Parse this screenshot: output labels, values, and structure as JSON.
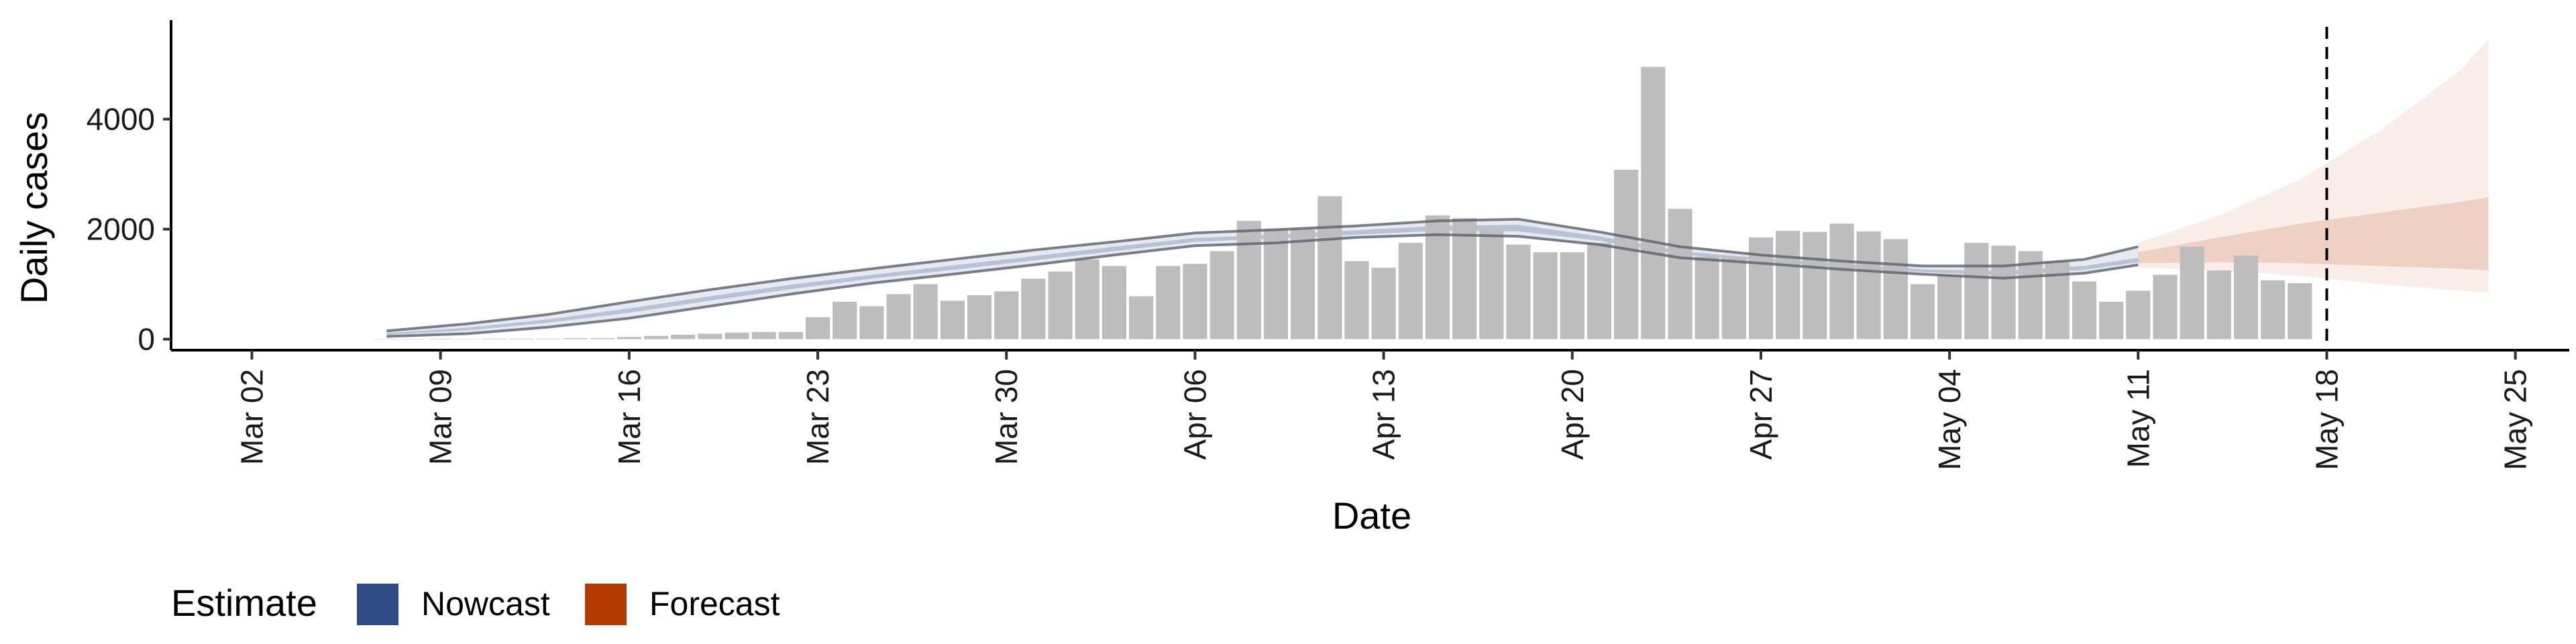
{
  "chart_data": {
    "type": "bar",
    "xlabel": "Date",
    "ylabel": "Daily cases",
    "ylim": [
      -200,
      5800
    ],
    "y_ticks": [
      0,
      2000,
      4000
    ],
    "x_tick_labels": [
      "Mar 02",
      "Mar 09",
      "Mar 16",
      "Mar 23",
      "Mar 30",
      "Apr 06",
      "Apr 13",
      "Apr 20",
      "Apr 27",
      "May 04",
      "May 11",
      "May 18",
      "May 25"
    ],
    "x_tick_dates": [
      "2020-03-02",
      "2020-03-09",
      "2020-03-16",
      "2020-03-23",
      "2020-03-30",
      "2020-04-06",
      "2020-04-13",
      "2020-04-20",
      "2020-04-27",
      "2020-05-04",
      "2020-05-11",
      "2020-05-18",
      "2020-05-25"
    ],
    "x_range": [
      "2020-02-28",
      "2020-05-27"
    ],
    "reference_line_date": "2020-05-18",
    "bar_color": "#bdbdbd",
    "nowcast_color": "#2f4b85",
    "forecast_color": "#b33a00",
    "bars": {
      "start_date": "2020-03-07",
      "values": [
        5,
        5,
        10,
        5,
        10,
        10,
        10,
        20,
        20,
        40,
        60,
        80,
        100,
        120,
        130,
        130,
        400,
        680,
        600,
        820,
        1000,
        700,
        800,
        870,
        1100,
        1230,
        1450,
        1330,
        780,
        1330,
        1370,
        1600,
        2150,
        2000,
        2000,
        2600,
        1420,
        1300,
        1750,
        2250,
        2200,
        2000,
        1720,
        1580,
        1580,
        1750,
        3080,
        4950,
        2370,
        1500,
        1500,
        1850,
        1970,
        1950,
        2100,
        1960,
        1820,
        1000,
        1170,
        1750,
        1700,
        1600,
        1420,
        1050,
        680,
        880,
        1170,
        1680,
        1250,
        1520,
        1070,
        1020
      ]
    },
    "nowcast": {
      "dates": [
        "2020-03-07",
        "2020-03-10",
        "2020-03-13",
        "2020-03-16",
        "2020-03-19",
        "2020-03-22",
        "2020-03-25",
        "2020-03-28",
        "2020-03-31",
        "2020-04-03",
        "2020-04-06",
        "2020-04-09",
        "2020-04-12",
        "2020-04-15",
        "2020-04-18",
        "2020-04-21",
        "2020-04-24",
        "2020-04-27",
        "2020-04-30",
        "2020-05-03",
        "2020-05-06",
        "2020-05-09",
        "2020-05-11"
      ],
      "outer_upper": [
        150,
        280,
        450,
        680,
        900,
        1100,
        1280,
        1450,
        1620,
        1770,
        1930,
        1990,
        2060,
        2150,
        2180,
        1950,
        1680,
        1530,
        1420,
        1330,
        1330,
        1450,
        1680
      ],
      "outer_lower": [
        50,
        100,
        220,
        380,
        600,
        820,
        1020,
        1180,
        1350,
        1530,
        1700,
        1750,
        1850,
        1900,
        1870,
        1720,
        1480,
        1380,
        1270,
        1180,
        1110,
        1200,
        1350
      ],
      "inner_upper": [
        110,
        210,
        360,
        560,
        780,
        990,
        1170,
        1340,
        1510,
        1680,
        1840,
        1900,
        1980,
        2060,
        2080,
        1870,
        1600,
        1470,
        1370,
        1270,
        1240,
        1330,
        1480
      ],
      "inner_lower": [
        80,
        160,
        300,
        480,
        700,
        910,
        1100,
        1260,
        1430,
        1600,
        1770,
        1830,
        1900,
        1970,
        1960,
        1790,
        1540,
        1420,
        1310,
        1220,
        1160,
        1260,
        1400
      ]
    },
    "forecast": {
      "dates": [
        "2020-05-11",
        "2020-05-14",
        "2020-05-17",
        "2020-05-20",
        "2020-05-23",
        "2020-05-24"
      ],
      "outer_upper": [
        1750,
        2250,
        2900,
        3800,
        4900,
        5450
      ],
      "outer_lower": [
        1300,
        1250,
        1150,
        1000,
        880,
        850
      ],
      "inner_upper": [
        1580,
        1850,
        2100,
        2300,
        2500,
        2580
      ],
      "inner_lower": [
        1380,
        1400,
        1380,
        1330,
        1280,
        1250
      ]
    },
    "legend": {
      "title": "Estimate",
      "position": "bottom-left",
      "items": [
        {
          "label": "Nowcast",
          "color": "#2f4b85"
        },
        {
          "label": "Forecast",
          "color": "#b33a00"
        }
      ]
    },
    "grid": false
  }
}
